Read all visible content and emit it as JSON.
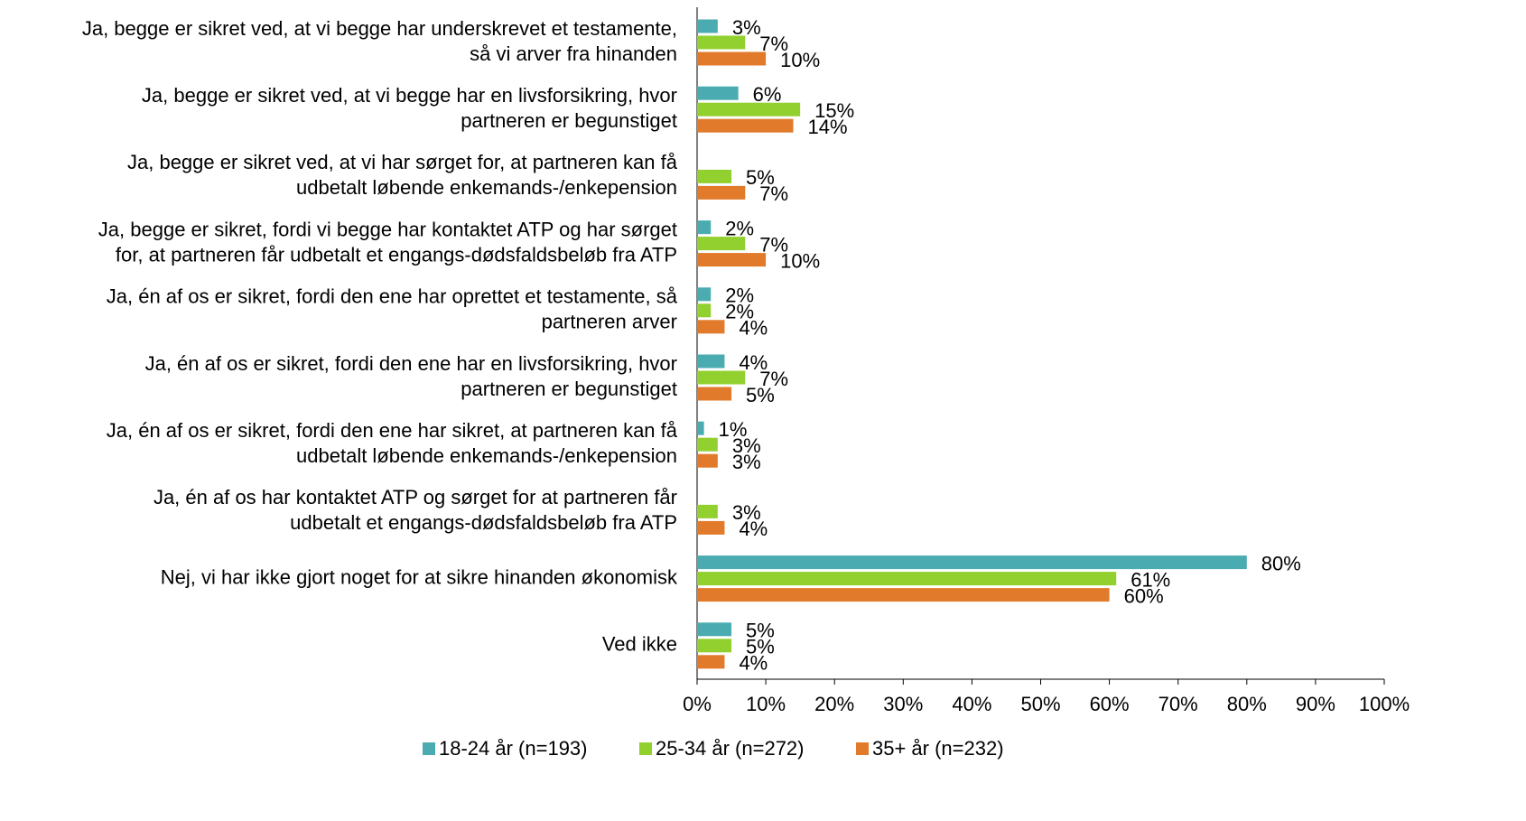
{
  "chart_data": {
    "type": "bar",
    "orientation": "horizontal",
    "categories": [
      [
        "Ja, begge er sikret ved, at vi begge har underskrevet et testamente,",
        "så vi arver fra hinanden"
      ],
      [
        "Ja, begge er sikret ved, at vi begge har en livsforsikring, hvor",
        "partneren er begunstiget"
      ],
      [
        "Ja, begge er sikret ved, at vi har sørget for, at partneren kan få",
        "udbetalt løbende enkemands-/enkepension"
      ],
      [
        "Ja, begge er sikret, fordi vi begge har kontaktet ATP og har sørget",
        "for, at partneren får udbetalt et engangs-dødsfaldsbeløb fra ATP"
      ],
      [
        "Ja, én af os er sikret, fordi den ene har oprettet et testamente, så",
        "partneren arver"
      ],
      [
        "Ja, én af os er sikret, fordi den ene har en livsforsikring, hvor",
        "partneren er begunstiget"
      ],
      [
        "Ja, én af os er sikret, fordi den ene har sikret, at partneren kan få",
        "udbetalt løbende enkemands-/enkepension"
      ],
      [
        "Ja, én af os har kontaktet ATP og sørget for at partneren får",
        "udbetalt et engangs-dødsfaldsbeløb fra ATP"
      ],
      [
        "Nej, vi har ikke gjort noget for at sikre hinanden økonomisk"
      ],
      [
        "Ved ikke"
      ]
    ],
    "series": [
      {
        "name": "18-24 år (n=193)",
        "color": "#4aacb0",
        "values": [
          3,
          6,
          null,
          2,
          2,
          4,
          1,
          null,
          80,
          5
        ],
        "value_labels": [
          "3%",
          "6%",
          null,
          "2%",
          "2%",
          "4%",
          "1%",
          null,
          "80%",
          "5%"
        ]
      },
      {
        "name": "25-34 år (n=272)",
        "color": "#92d030",
        "values": [
          7,
          15,
          5,
          7,
          2,
          7,
          3,
          3,
          61,
          5
        ],
        "value_labels": [
          "7%",
          "15%",
          "5%",
          "7%",
          "2%",
          "7%",
          "3%",
          "3%",
          "61%",
          "5%"
        ]
      },
      {
        "name": "35+ år (n=232)",
        "color": "#e17a2a",
        "values": [
          10,
          14,
          7,
          10,
          4,
          5,
          3,
          4,
          60,
          4
        ],
        "value_labels": [
          "10%",
          "14%",
          "7%",
          "10%",
          "4%",
          "5%",
          "3%",
          "4%",
          "60%",
          "4%"
        ]
      }
    ],
    "xlim": [
      0,
      100
    ],
    "xticks": [
      {
        "value": 0,
        "label": "0%"
      },
      {
        "value": 10,
        "label": "10%"
      },
      {
        "value": 20,
        "label": "20%"
      },
      {
        "value": 30,
        "label": "30%"
      },
      {
        "value": 40,
        "label": "40%"
      },
      {
        "value": 50,
        "label": "50%"
      },
      {
        "value": 60,
        "label": "60%"
      },
      {
        "value": 70,
        "label": "70%"
      },
      {
        "value": 80,
        "label": "80%"
      },
      {
        "value": 90,
        "label": "90%"
      },
      {
        "value": 100,
        "label": "100%"
      }
    ],
    "legend": "bottom"
  }
}
